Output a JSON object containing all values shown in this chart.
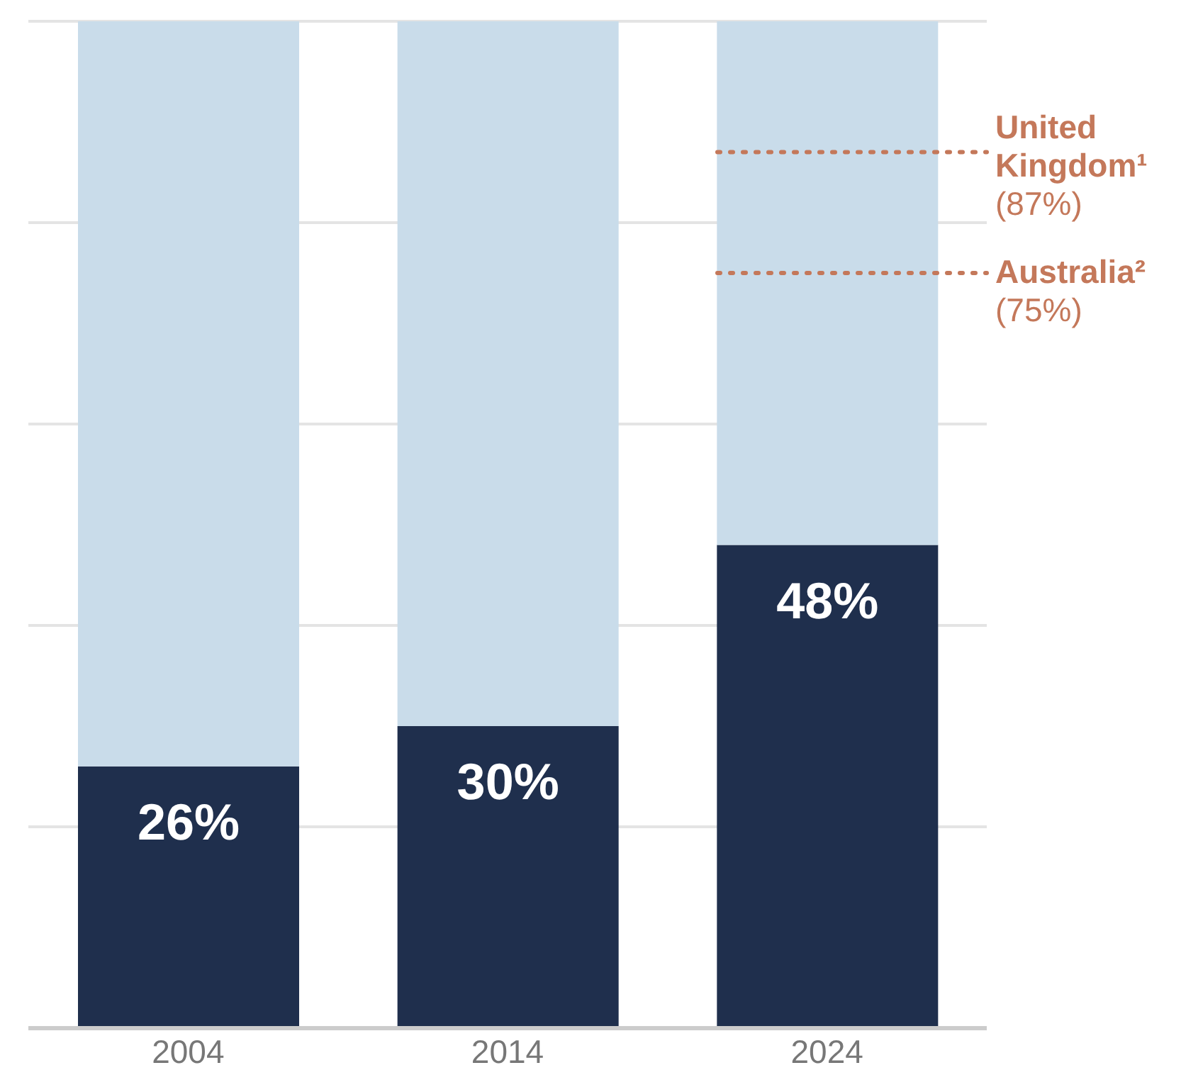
{
  "chart_data": {
    "type": "bar",
    "stacked": true,
    "categories": [
      "2004",
      "2014",
      "2024"
    ],
    "series": [
      {
        "color": "#1f2f4d",
        "values": [
          26,
          30,
          48
        ],
        "value_labels": [
          "26%",
          "30%",
          "48%"
        ]
      },
      {
        "color": "#c9dcea",
        "values": [
          74,
          70,
          52
        ]
      }
    ],
    "ylim": [
      0,
      100
    ],
    "yticks": [
      {
        "value": 0,
        "label": null
      },
      {
        "value": 20,
        "label": null
      },
      {
        "value": 40,
        "label": null
      },
      {
        "value": 60,
        "label": null
      },
      {
        "value": 80,
        "label": null
      },
      {
        "value": 100,
        "label": null
      }
    ],
    "grid": "y",
    "tick_labels": "x",
    "legend": false,
    "ref_lines": [
      {
        "axis": "y",
        "value": 87,
        "label": "United Kingdom¹ (87%)",
        "color": "#c4785a",
        "line_style": "dotted"
      },
      {
        "axis": "y",
        "value": 75,
        "label": "Australia² (75%)",
        "color": "#c4785a",
        "line_style": "dotted"
      }
    ]
  }
}
